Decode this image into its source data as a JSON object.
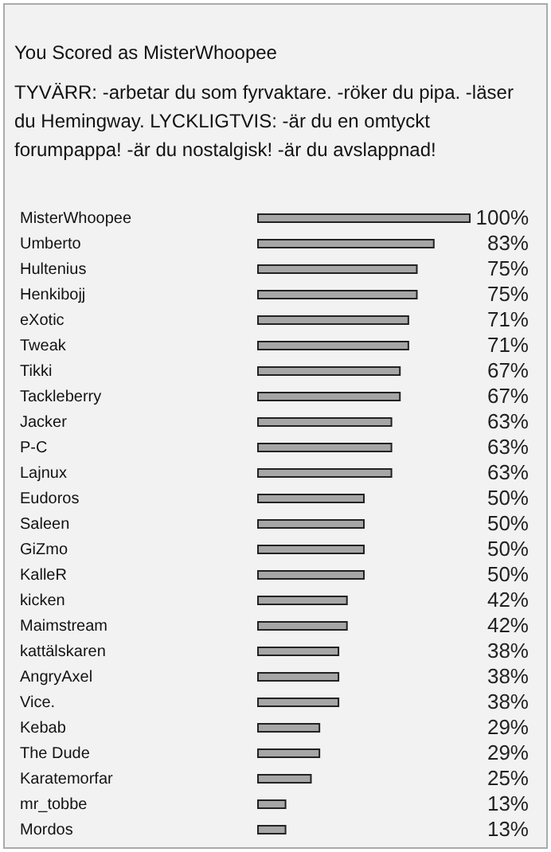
{
  "chart_data": {
    "type": "bar",
    "orientation": "horizontal",
    "title": "You Scored as MisterWhoopee",
    "subtitle": "TYVÄRR: -arbetar du som fyrvaktare. -röker du pipa. -läser du Hemingway. LYCKLIGTVIS: -är du en omtyckt forumpappa! -är du nostalgisk! -är du avslappnad!",
    "categories": [
      "MisterWhoopee",
      "Umberto",
      "Hultenius",
      "Henkibojj",
      "eXotic",
      "Tweak",
      "Tikki",
      "Tackleberry",
      "Jacker",
      "P-C",
      "Lajnux",
      "Eudoros",
      "Saleen",
      "GiZmo",
      "KalleR",
      "kicken",
      "Maimstream",
      "kattälskaren",
      "AngryAxel",
      "Vice.",
      "Kebab",
      "The Dude",
      "Karatemorfar",
      "mr_tobbe",
      "Mordos"
    ],
    "values": [
      100,
      83,
      75,
      75,
      71,
      71,
      67,
      67,
      63,
      63,
      63,
      50,
      50,
      50,
      50,
      42,
      42,
      38,
      38,
      38,
      29,
      29,
      25,
      13,
      13
    ],
    "value_labels": [
      "100%",
      "83%",
      "75%",
      "75%",
      "71%",
      "71%",
      "67%",
      "67%",
      "63%",
      "63%",
      "63%",
      "50%",
      "50%",
      "50%",
      "50%",
      "42%",
      "42%",
      "38%",
      "38%",
      "38%",
      "29%",
      "29%",
      "25%",
      "13%",
      "13%"
    ],
    "color": "#a6a6a6",
    "xlim": [
      0,
      100
    ],
    "tick_labels": "y"
  }
}
